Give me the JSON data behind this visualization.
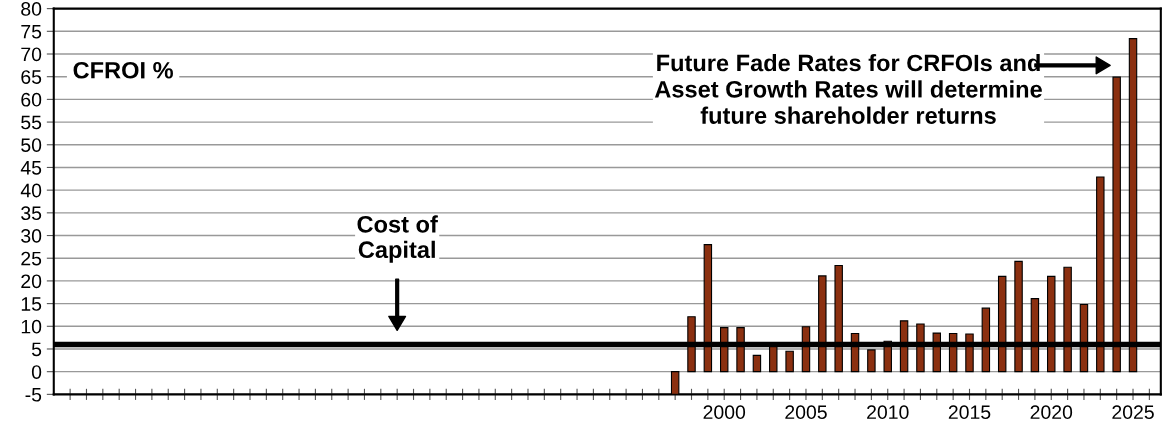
{
  "chart_data": {
    "type": "bar",
    "x": [
      1997,
      1998,
      1999,
      2000,
      2001,
      2002,
      2003,
      2004,
      2005,
      2006,
      2007,
      2008,
      2009,
      2010,
      2011,
      2012,
      2013,
      2014,
      2015,
      2016,
      2017,
      2018,
      2019,
      2020,
      2021,
      2022,
      2023,
      2024,
      2025
    ],
    "values": [
      -5,
      12.1,
      28,
      9.7,
      9.7,
      3.6,
      5.7,
      4.5,
      9.9,
      21.1,
      23.4,
      8.4,
      4.8,
      6.7,
      11.2,
      10.5,
      8.5,
      8.4,
      8.3,
      14,
      21,
      24.3,
      16.1,
      21,
      23,
      14.8,
      42.9,
      64.9,
      73.4
    ],
    "color": "#8b3010",
    "xlim": [
      1959,
      2026.7
    ],
    "xticks": [
      {
        "value": 1960,
        "label": null
      },
      {
        "value": 1961,
        "label": null
      },
      {
        "value": 1962,
        "label": null
      },
      {
        "value": 1963,
        "label": null
      },
      {
        "value": 1964,
        "label": null
      },
      {
        "value": 1965,
        "label": null
      },
      {
        "value": 1966,
        "label": null
      },
      {
        "value": 1967,
        "label": null
      },
      {
        "value": 1968,
        "label": null
      },
      {
        "value": 1969,
        "label": null
      },
      {
        "value": 1970,
        "label": null
      },
      {
        "value": 1971,
        "label": null
      },
      {
        "value": 1972,
        "label": null
      },
      {
        "value": 1973,
        "label": null
      },
      {
        "value": 1974,
        "label": null
      },
      {
        "value": 1975,
        "label": null
      },
      {
        "value": 1976,
        "label": null
      },
      {
        "value": 1977,
        "label": null
      },
      {
        "value": 1978,
        "label": null
      },
      {
        "value": 1979,
        "label": null
      },
      {
        "value": 1980,
        "label": null
      },
      {
        "value": 1981,
        "label": null
      },
      {
        "value": 1982,
        "label": null
      },
      {
        "value": 1983,
        "label": null
      },
      {
        "value": 1984,
        "label": null
      },
      {
        "value": 1985,
        "label": null
      },
      {
        "value": 1986,
        "label": null
      },
      {
        "value": 1987,
        "label": null
      },
      {
        "value": 1988,
        "label": null
      },
      {
        "value": 1989,
        "label": null
      },
      {
        "value": 1990,
        "label": null
      },
      {
        "value": 1991,
        "label": null
      },
      {
        "value": 1992,
        "label": null
      },
      {
        "value": 1993,
        "label": null
      },
      {
        "value": 1994,
        "label": null
      },
      {
        "value": 1995,
        "label": null
      },
      {
        "value": 1996,
        "label": null
      },
      {
        "value": 1997,
        "label": null
      },
      {
        "value": 1998,
        "label": null
      },
      {
        "value": 1999,
        "label": null
      },
      2000,
      {
        "value": 2001,
        "label": null
      },
      {
        "value": 2002,
        "label": null
      },
      {
        "value": 2003,
        "label": null
      },
      {
        "value": 2004,
        "label": null
      },
      2005,
      {
        "value": 2006,
        "label": null
      },
      {
        "value": 2007,
        "label": null
      },
      {
        "value": 2008,
        "label": null
      },
      {
        "value": 2009,
        "label": null
      },
      2010,
      {
        "value": 2011,
        "label": null
      },
      {
        "value": 2012,
        "label": null
      },
      {
        "value": 2013,
        "label": null
      },
      {
        "value": 2014,
        "label": null
      },
      2015,
      {
        "value": 2016,
        "label": null
      },
      {
        "value": 2017,
        "label": null
      },
      {
        "value": 2018,
        "label": null
      },
      {
        "value": 2019,
        "label": null
      },
      2020,
      {
        "value": 2021,
        "label": null
      },
      {
        "value": 2022,
        "label": null
      },
      {
        "value": 2023,
        "label": null
      },
      {
        "value": 2024,
        "label": null
      },
      2025,
      {
        "value": 2026,
        "label": null
      }
    ],
    "ylim": [
      -5,
      80
    ],
    "yticks": [
      -5,
      0,
      5,
      10,
      15,
      20,
      25,
      30,
      35,
      40,
      45,
      50,
      55,
      60,
      65,
      70,
      75,
      80
    ],
    "grid": "y",
    "ref_lines": [
      {
        "axis": "y",
        "value": 6,
        "label": "Cost of\nCapital",
        "color": "#000000",
        "line_style": "solid"
      }
    ],
    "annotations": [
      "CFROI %",
      "Future Fade Rates for CRFOIs and\nAsset Growth Rates will determine\nfuture shareholder returns"
    ]
  }
}
